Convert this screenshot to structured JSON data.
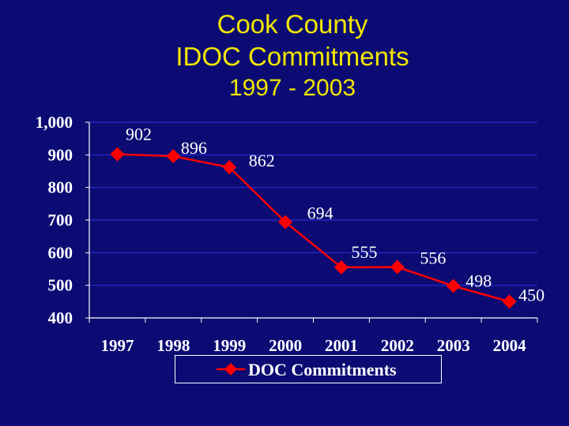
{
  "title": {
    "line1": "Cook County",
    "line2": "IDOC Commitments",
    "line3": "1997 - 2003"
  },
  "colors": {
    "background": "#0b0b73",
    "title": "#f2e600",
    "series": "#ff0000",
    "gridline": "#2a2ad8",
    "text": "#ffffff"
  },
  "chart_data": {
    "type": "line",
    "title": "Cook County IDOC Commitments 1997 - 2003",
    "categories": [
      "1997",
      "1998",
      "1999",
      "2000",
      "2001",
      "2002",
      "2003",
      "2004"
    ],
    "series": [
      {
        "name": "DOC Commitments",
        "values": [
          902,
          896,
          862,
          694,
          555,
          556,
          498,
          450
        ]
      }
    ],
    "data_labels": [
      "902",
      "896",
      "862",
      "694",
      "555",
      "556",
      "498",
      "450"
    ],
    "ylim": [
      400,
      1000
    ],
    "yticks": [
      400,
      500,
      600,
      700,
      800,
      900,
      1000
    ],
    "ytick_labels": [
      "400",
      "500",
      "600",
      "700",
      "800",
      "900",
      "1,000"
    ],
    "grid": true,
    "legend": "bottom",
    "marker": "diamond"
  }
}
